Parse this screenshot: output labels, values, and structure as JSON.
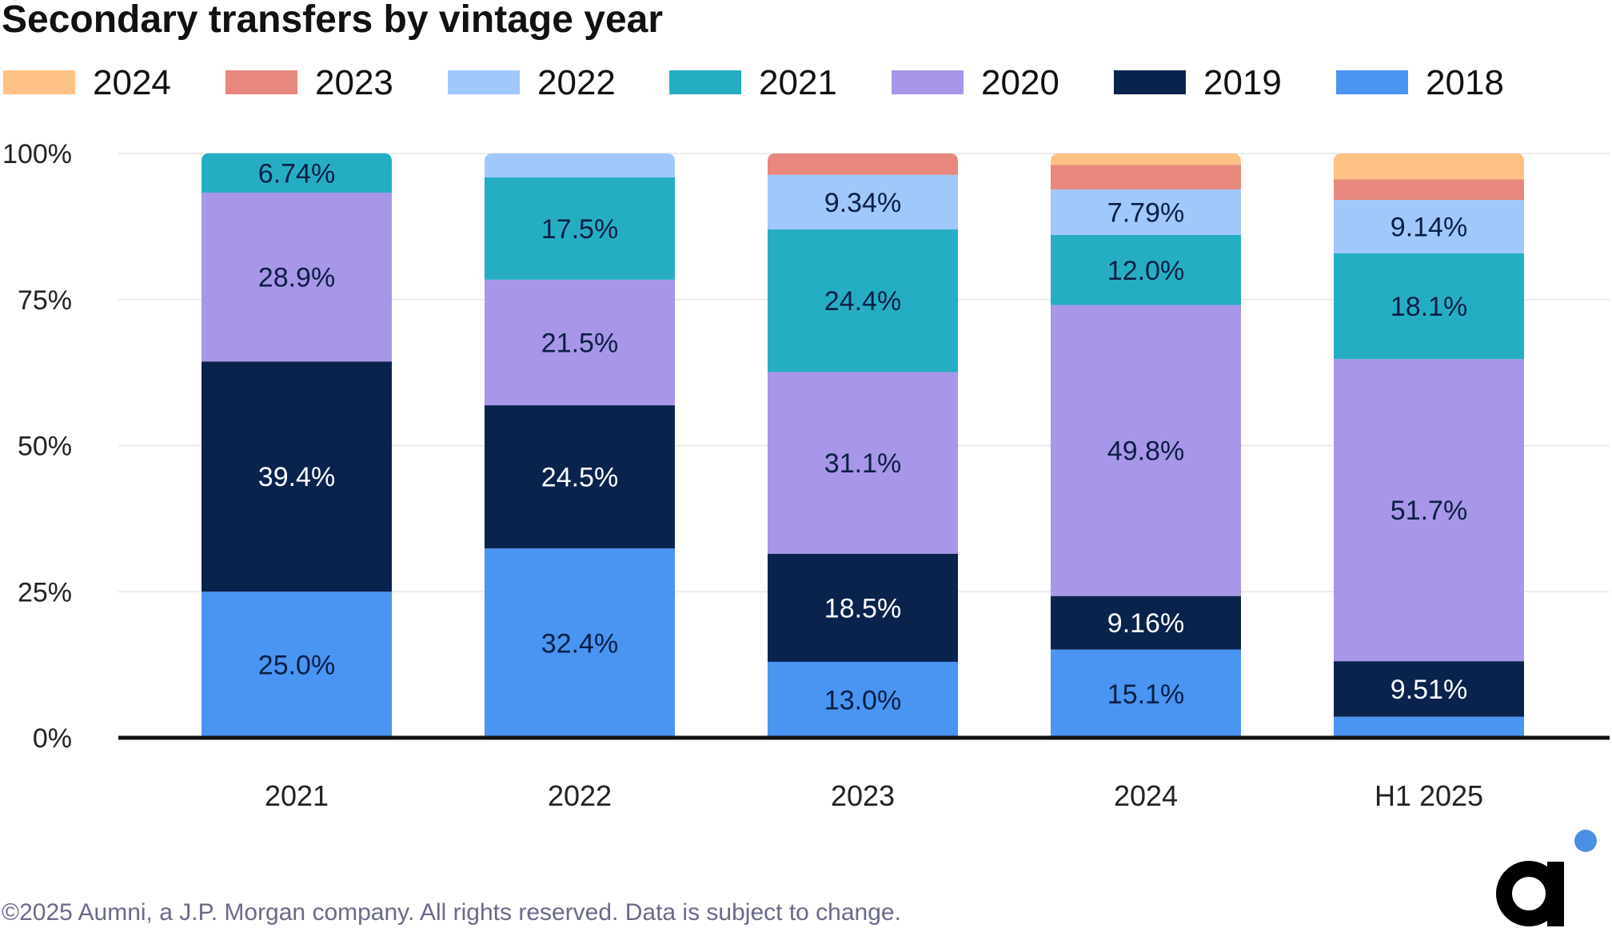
{
  "footer": "©2025 Aumni, a J.P. Morgan company. All rights reserved. Data is subject to change.",
  "logo": {
    "letter": "a",
    "icon": "aumni-logo-icon",
    "dot_color": "#4A90E2"
  },
  "chart_data": {
    "type": "bar",
    "stacked": true,
    "title": "Secondary transfers by vintage year",
    "xlabel": "",
    "ylabel": "",
    "categories": [
      "2021",
      "2022",
      "2023",
      "2024",
      "H1 2025"
    ],
    "ylim": [
      0,
      100
    ],
    "y_ticks": [
      "0%",
      "25%",
      "50%",
      "75%",
      "100%"
    ],
    "grid": true,
    "legend_position": "top",
    "legend_order": [
      "2024",
      "2023",
      "2022",
      "2021",
      "2020",
      "2019",
      "2018"
    ],
    "series": [
      {
        "name": "2018",
        "color": "#4A94F2",
        "values": [
          25.0,
          32.4,
          13.0,
          15.1,
          3.6
        ],
        "labels": [
          "25.0%",
          "32.4%",
          "13.0%",
          "15.1%",
          ""
        ]
      },
      {
        "name": "2019",
        "color": "#0A234D",
        "values": [
          39.4,
          24.5,
          18.5,
          9.16,
          9.51
        ],
        "labels": [
          "39.4%",
          "24.5%",
          "18.5%",
          "9.16%",
          "9.51%"
        ]
      },
      {
        "name": "2020",
        "color": "#A896E8",
        "values": [
          28.9,
          21.5,
          31.1,
          49.8,
          51.7
        ],
        "labels": [
          "28.9%",
          "21.5%",
          "31.1%",
          "49.8%",
          "51.7%"
        ]
      },
      {
        "name": "2021",
        "color": "#25AEC3",
        "values": [
          6.74,
          17.5,
          24.4,
          12.0,
          18.1
        ],
        "labels": [
          "6.74%",
          "17.5%",
          "24.4%",
          "12.0%",
          "18.1%"
        ]
      },
      {
        "name": "2022",
        "color": "#A0C8FB",
        "values": [
          0,
          4.1,
          9.34,
          7.79,
          9.14
        ],
        "labels": [
          "",
          "",
          "9.34%",
          "7.79%",
          "9.14%"
        ]
      },
      {
        "name": "2023",
        "color": "#E8877D",
        "values": [
          0,
          0,
          3.66,
          4.2,
          3.5
        ],
        "labels": [
          "",
          "",
          "",
          "",
          ""
        ]
      },
      {
        "name": "2024",
        "color": "#FDC185",
        "values": [
          0,
          0,
          0,
          1.95,
          4.45
        ],
        "labels": [
          "",
          "",
          "",
          "",
          ""
        ]
      }
    ]
  }
}
